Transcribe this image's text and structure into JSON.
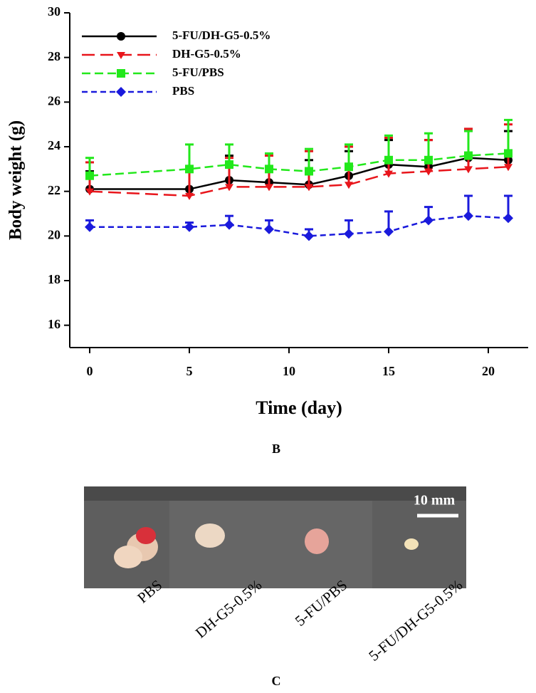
{
  "chart_data": {
    "type": "line",
    "x_label": "Time (day)",
    "y_label": "Body weight (g)",
    "x": [
      0,
      5,
      7,
      9,
      11,
      13,
      15,
      17,
      19,
      21
    ],
    "xlim": [
      -1,
      22
    ],
    "xticks": [
      0,
      5,
      10,
      15,
      20
    ],
    "ylim": [
      15,
      30
    ],
    "yticks": [
      16,
      18,
      20,
      22,
      24,
      26,
      28,
      30
    ],
    "legend": "upper left",
    "series": [
      {
        "name": "5-FU/DH-G5-0.5%",
        "color": "#000000",
        "marker": "circle",
        "dash": "none",
        "values": [
          22.1,
          22.1,
          22.5,
          22.4,
          22.3,
          22.7,
          23.2,
          23.1,
          23.5,
          23.4
        ],
        "errors": [
          0.8,
          0.9,
          1.1,
          1.2,
          1.1,
          1.1,
          1.1,
          1.2,
          1.3,
          1.3
        ]
      },
      {
        "name": "DH-G5-0.5%",
        "color": "#e8151b",
        "marker": "triangle-down",
        "dash": "18 8",
        "values": [
          22.0,
          21.8,
          22.2,
          22.2,
          22.2,
          22.3,
          22.8,
          22.9,
          23.0,
          23.1
        ],
        "errors": [
          1.3,
          1.3,
          1.3,
          1.4,
          1.6,
          1.7,
          1.6,
          1.4,
          1.8,
          1.9
        ]
      },
      {
        "name": "5-FU/PBS",
        "color": "#22e81b",
        "marker": "square",
        "dash": "12 6",
        "values": [
          22.7,
          23.0,
          23.2,
          23.0,
          22.9,
          23.1,
          23.4,
          23.4,
          23.6,
          23.7
        ],
        "errors": [
          0.8,
          1.1,
          0.9,
          0.7,
          1.0,
          1.0,
          1.1,
          1.2,
          1.1,
          1.5
        ]
      },
      {
        "name": "PBS",
        "color": "#1a1adc",
        "marker": "diamond",
        "dash": "8 5",
        "values": [
          20.4,
          20.4,
          20.5,
          20.3,
          20.0,
          20.1,
          20.2,
          20.7,
          20.9,
          20.8
        ],
        "errors": [
          0.3,
          0.2,
          0.4,
          0.4,
          0.3,
          0.6,
          0.9,
          0.6,
          0.9,
          1.0
        ]
      }
    ]
  },
  "panel_labels": [
    "B",
    "C"
  ],
  "photo": {
    "scale_bar": "10 mm",
    "labels": [
      "PBS",
      "DH-G5-0.5%",
      "5-FU/PBS",
      "5-FU/DH-G5-0.5%"
    ]
  }
}
